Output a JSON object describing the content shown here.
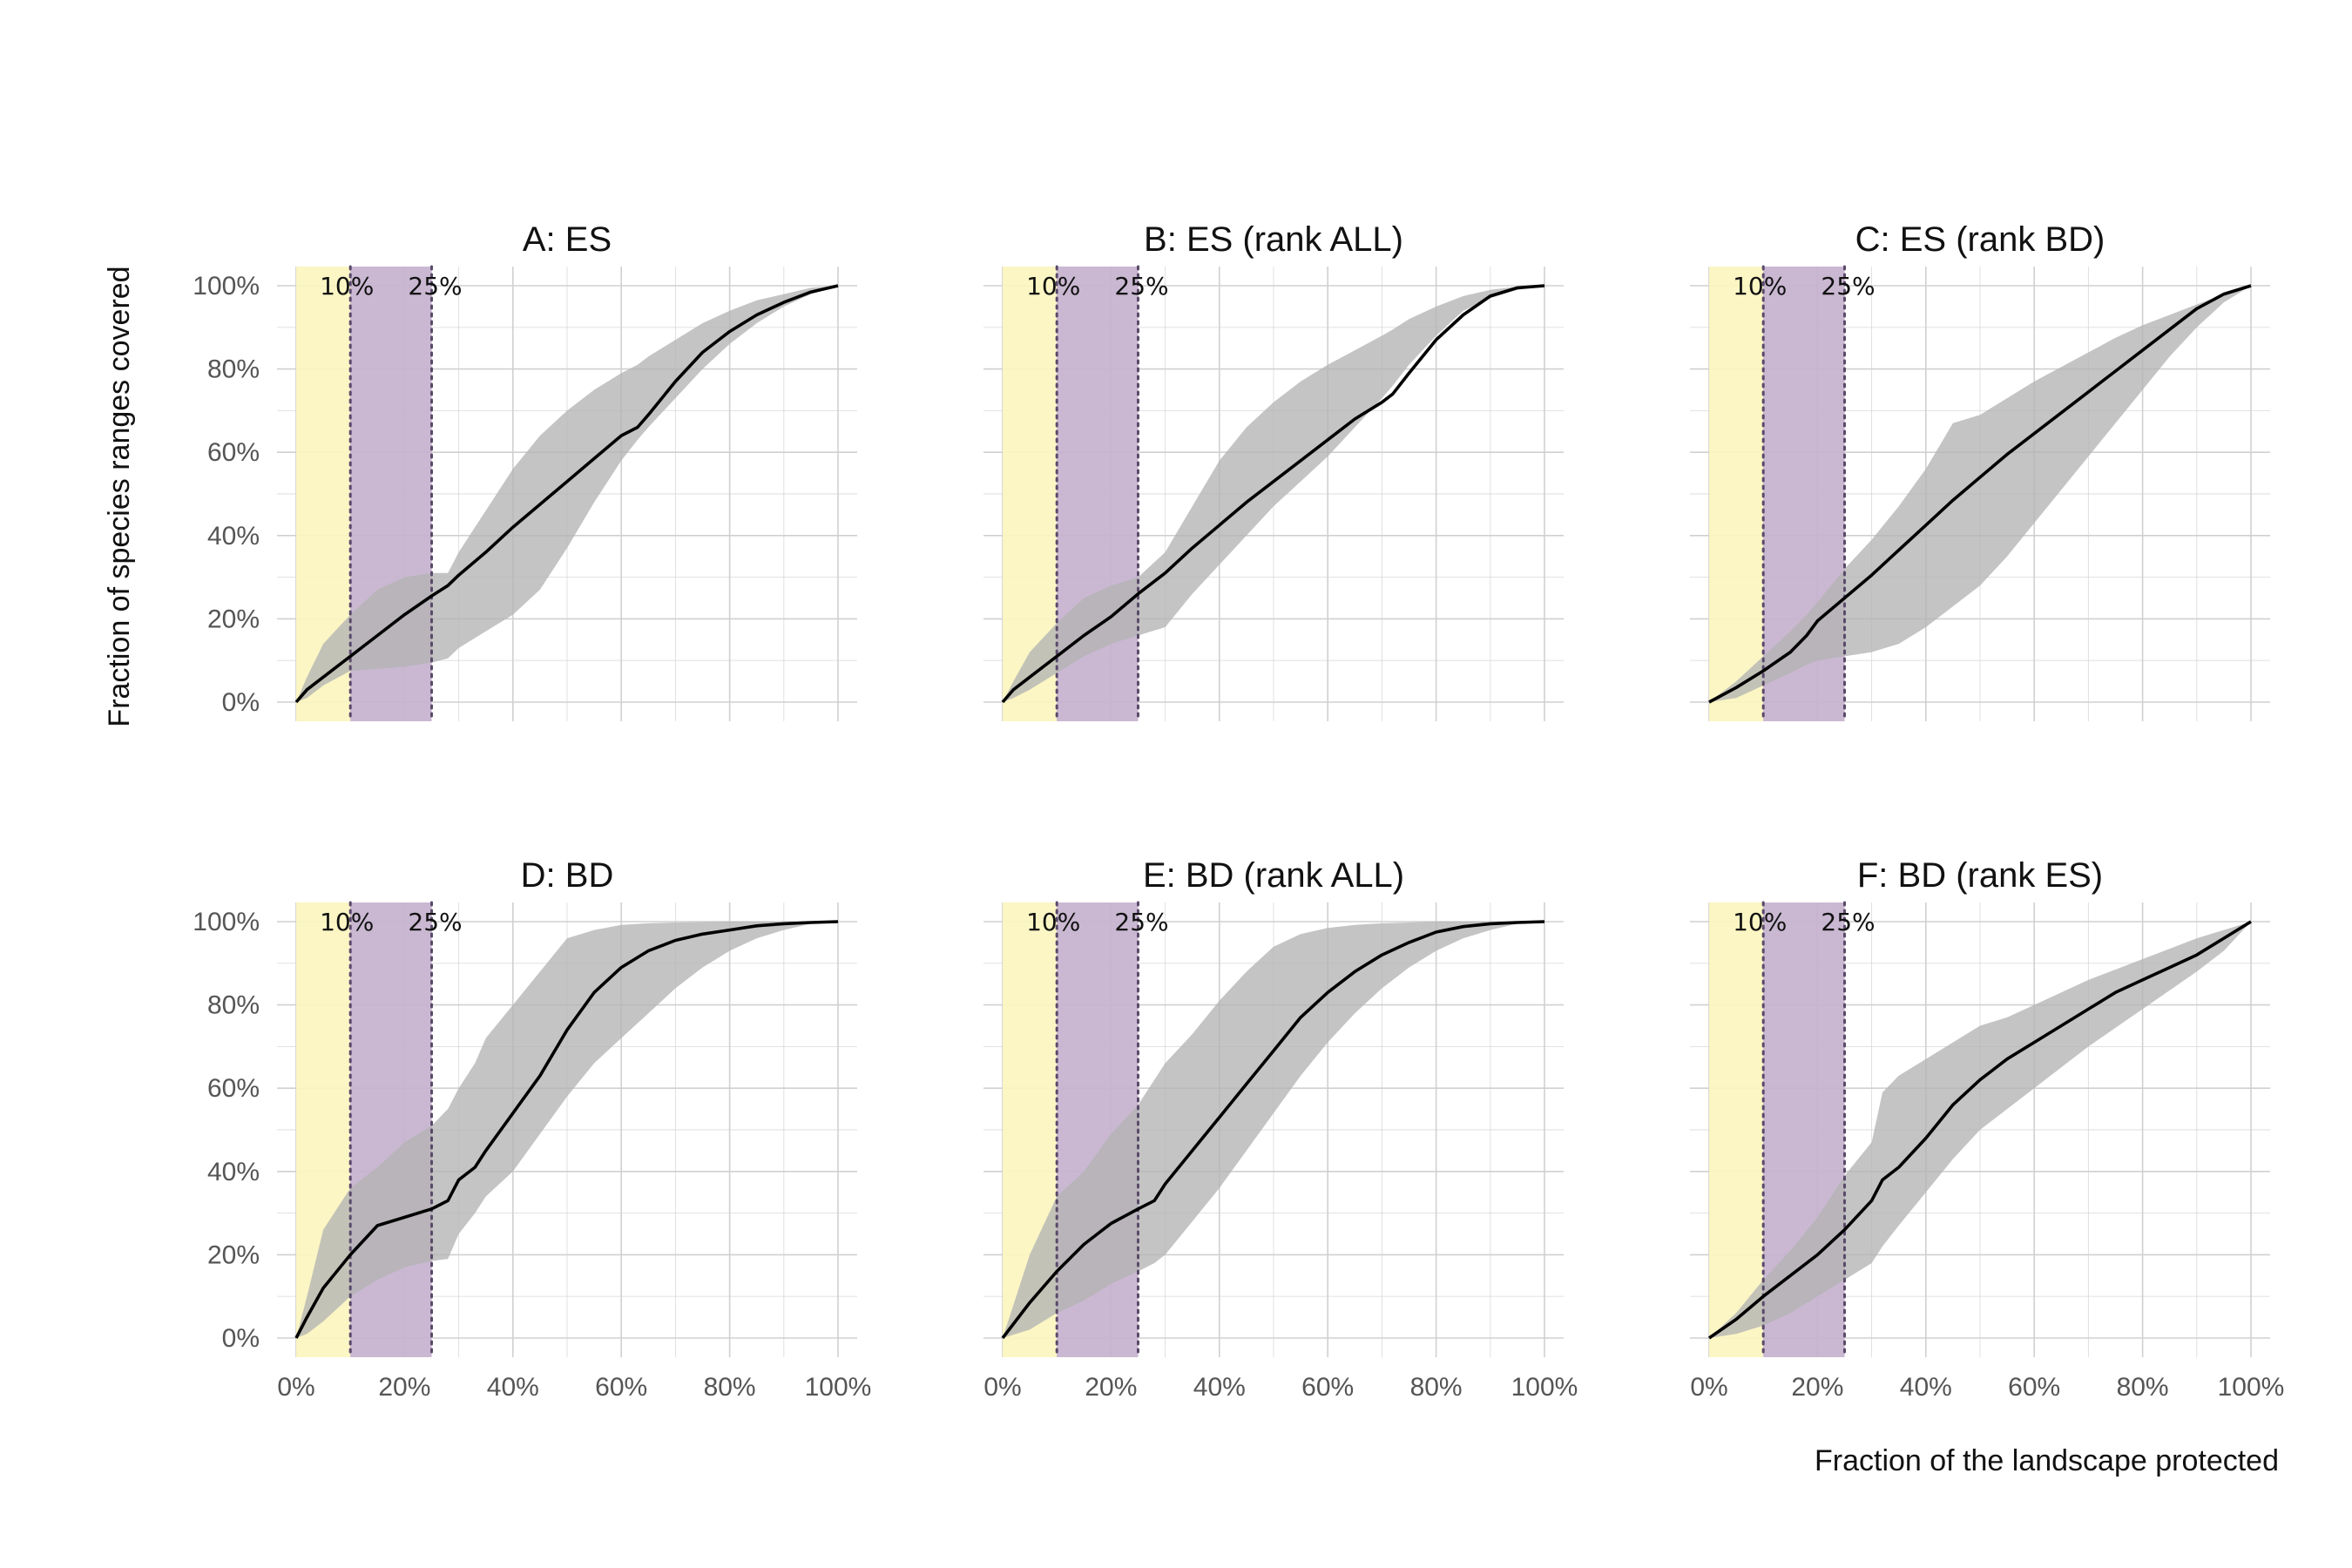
{
  "figure": {
    "xlabel": "Fraction of the landscape protected",
    "ylabel": "Fraction of species ranges covered",
    "x_ticks": [
      "0%",
      "20%",
      "40%",
      "60%",
      "80%",
      "100%"
    ],
    "y_ticks": [
      "0%",
      "20%",
      "40%",
      "60%",
      "80%",
      "100%"
    ],
    "band_labels": [
      "10%",
      "25%"
    ],
    "colors": {
      "band_0_10": "#fbf5bf",
      "band_10_25": "#c6b2ce",
      "ribbon": "#b3b3b3",
      "line": "#000000",
      "grid": "#d0d0d0",
      "vline": "#5a4a6a"
    }
  },
  "chart_data": [
    {
      "type": "line",
      "title": "A: ES",
      "xlim": [
        0,
        100
      ],
      "ylim": [
        0,
        100
      ],
      "grid": true,
      "shaded_bands": [
        [
          0,
          10
        ],
        [
          10,
          25
        ]
      ],
      "vlines": [
        10,
        25
      ],
      "x": [
        0,
        2,
        5,
        10,
        15,
        20,
        25,
        28,
        30,
        35,
        40,
        45,
        50,
        55,
        60,
        63,
        65,
        70,
        75,
        80,
        85,
        90,
        95,
        100
      ],
      "mean": [
        0,
        3,
        6,
        11,
        16,
        21,
        25.5,
        28,
        30.5,
        36,
        42,
        47.5,
        53,
        58.5,
        64,
        66,
        69,
        77,
        84,
        89,
        93,
        96,
        98.5,
        100
      ],
      "lower": [
        0,
        1,
        4,
        7.5,
        8,
        8.5,
        9.5,
        10.5,
        13,
        17,
        21,
        27,
        37,
        48,
        58,
        63,
        66,
        73,
        80,
        86,
        91,
        95,
        98,
        100
      ],
      "upper": [
        0,
        6,
        14,
        21,
        27,
        30,
        31,
        31,
        36,
        46,
        56,
        64,
        70,
        75,
        79,
        81,
        83,
        87,
        91,
        94,
        96.5,
        98,
        99.5,
        100
      ]
    },
    {
      "type": "line",
      "title": "B: ES (rank ALL)",
      "xlim": [
        0,
        100
      ],
      "ylim": [
        0,
        100
      ],
      "grid": true,
      "shaded_bands": [
        [
          0,
          10
        ],
        [
          10,
          25
        ]
      ],
      "vlines": [
        10,
        25
      ],
      "x": [
        0,
        2,
        5,
        10,
        15,
        20,
        25,
        30,
        35,
        40,
        45,
        50,
        55,
        60,
        65,
        70,
        72,
        75,
        80,
        85,
        90,
        95,
        100
      ],
      "mean": [
        0,
        3,
        6,
        11,
        16,
        20.5,
        26,
        31,
        37,
        42.5,
        48,
        53,
        58,
        63,
        68,
        72,
        74,
        79,
        87,
        93,
        97.5,
        99.5,
        100
      ],
      "lower": [
        0,
        1,
        3,
        7,
        11,
        14,
        16,
        18,
        26,
        33,
        40,
        47,
        53,
        59,
        66,
        73,
        76,
        81,
        88,
        94,
        97,
        99,
        100
      ],
      "upper": [
        0,
        5,
        12,
        19,
        25,
        28,
        30,
        36,
        47,
        58,
        66,
        72,
        77,
        81,
        84.5,
        88,
        89.5,
        92,
        95,
        97.5,
        99,
        99.8,
        100
      ]
    },
    {
      "type": "line",
      "title": "C: ES (rank BD)",
      "xlim": [
        0,
        100
      ],
      "ylim": [
        0,
        100
      ],
      "grid": true,
      "shaded_bands": [
        [
          0,
          10
        ],
        [
          10,
          25
        ]
      ],
      "vlines": [
        10,
        25
      ],
      "x": [
        0,
        5,
        10,
        15,
        18,
        20,
        25,
        30,
        35,
        40,
        45,
        50,
        55,
        60,
        65,
        70,
        75,
        80,
        85,
        90,
        95,
        100
      ],
      "mean": [
        0,
        3.5,
        7.5,
        12,
        16,
        19.5,
        25,
        30.5,
        36.5,
        42.5,
        48.5,
        54,
        59.5,
        64.5,
        69.5,
        74.5,
        79.5,
        84.5,
        89.5,
        94.5,
        98,
        100
      ],
      "lower": [
        0,
        1,
        4,
        7,
        9,
        10,
        11,
        12,
        14,
        18,
        23,
        28,
        35,
        43,
        51,
        59,
        67,
        75,
        83,
        90,
        96,
        100
      ],
      "upper": [
        0,
        5,
        11,
        17,
        21,
        24,
        32,
        39,
        47,
        56,
        67,
        69,
        73,
        77,
        80.5,
        84,
        87.5,
        90.5,
        93,
        95.5,
        98,
        100
      ]
    },
    {
      "type": "line",
      "title": "D: BD",
      "xlim": [
        0,
        100
      ],
      "ylim": [
        0,
        100
      ],
      "grid": true,
      "shaded_bands": [
        [
          0,
          10
        ],
        [
          10,
          25
        ]
      ],
      "vlines": [
        10,
        25
      ],
      "x": [
        0,
        2,
        5,
        10,
        15,
        20,
        25,
        28,
        30,
        33,
        35,
        40,
        45,
        50,
        55,
        60,
        65,
        70,
        75,
        80,
        85,
        90,
        95,
        100
      ],
      "mean": [
        0,
        5,
        12,
        20,
        27,
        29,
        31,
        33,
        38,
        41,
        45,
        54,
        63,
        74,
        83,
        89,
        93,
        95.5,
        97,
        98,
        99,
        99.5,
        99.8,
        100
      ],
      "lower": [
        0,
        1,
        4,
        10,
        14,
        17,
        18.5,
        19,
        25,
        30,
        34,
        40,
        49,
        58,
        66,
        72,
        78,
        84,
        89,
        93,
        96,
        98,
        99.5,
        100
      ],
      "upper": [
        0,
        10,
        26,
        36,
        41,
        47,
        51,
        55,
        60,
        66,
        72,
        80,
        88,
        96,
        98,
        99.2,
        99.6,
        99.8,
        99.9,
        100,
        100,
        100,
        100,
        100
      ]
    },
    {
      "type": "line",
      "title": "E: BD (rank ALL)",
      "xlim": [
        0,
        100
      ],
      "ylim": [
        0,
        100
      ],
      "grid": true,
      "shaded_bands": [
        [
          0,
          10
        ],
        [
          10,
          25
        ]
      ],
      "vlines": [
        10,
        25
      ],
      "x": [
        0,
        5,
        10,
        15,
        20,
        25,
        28,
        30,
        35,
        40,
        45,
        50,
        55,
        60,
        65,
        70,
        75,
        80,
        85,
        90,
        95,
        100
      ],
      "mean": [
        0,
        8.5,
        16,
        22.5,
        27.5,
        31,
        33,
        37,
        45,
        53,
        61,
        69,
        77,
        83,
        88,
        92,
        95,
        97.5,
        98.8,
        99.5,
        99.8,
        100
      ],
      "lower": [
        0,
        2,
        6,
        9,
        13,
        16,
        18,
        20,
        28,
        36,
        45,
        54,
        63,
        71,
        78,
        84,
        89,
        93,
        96,
        98,
        99.5,
        100
      ],
      "upper": [
        0,
        20,
        34,
        40,
        49,
        56,
        62,
        66,
        73,
        81,
        88,
        94,
        97,
        98.5,
        99.2,
        99.6,
        99.8,
        100,
        100,
        100,
        100,
        100
      ]
    },
    {
      "type": "line",
      "title": "F: BD (rank ES)",
      "xlim": [
        0,
        100
      ],
      "ylim": [
        0,
        100
      ],
      "grid": true,
      "shaded_bands": [
        [
          0,
          10
        ],
        [
          10,
          25
        ]
      ],
      "vlines": [
        10,
        25
      ],
      "x": [
        0,
        5,
        10,
        15,
        20,
        25,
        30,
        32,
        35,
        40,
        45,
        50,
        55,
        60,
        65,
        70,
        75,
        80,
        85,
        90,
        95,
        100
      ],
      "mean": [
        0,
        4.5,
        10,
        15,
        20,
        26,
        33,
        38,
        41,
        48,
        56,
        62,
        67,
        71,
        75,
        79,
        83,
        86,
        89,
        92,
        96,
        100
      ],
      "lower": [
        0,
        1,
        3,
        6,
        10,
        14,
        18,
        22,
        27,
        35,
        43,
        50,
        55,
        60,
        65,
        70,
        74.5,
        79,
        83.5,
        88,
        93,
        100
      ],
      "upper": [
        0,
        6,
        14,
        21,
        29,
        39,
        47,
        59,
        63,
        67,
        71,
        75,
        77,
        80,
        83,
        86,
        88.5,
        91,
        93.5,
        96,
        98,
        100
      ]
    }
  ]
}
